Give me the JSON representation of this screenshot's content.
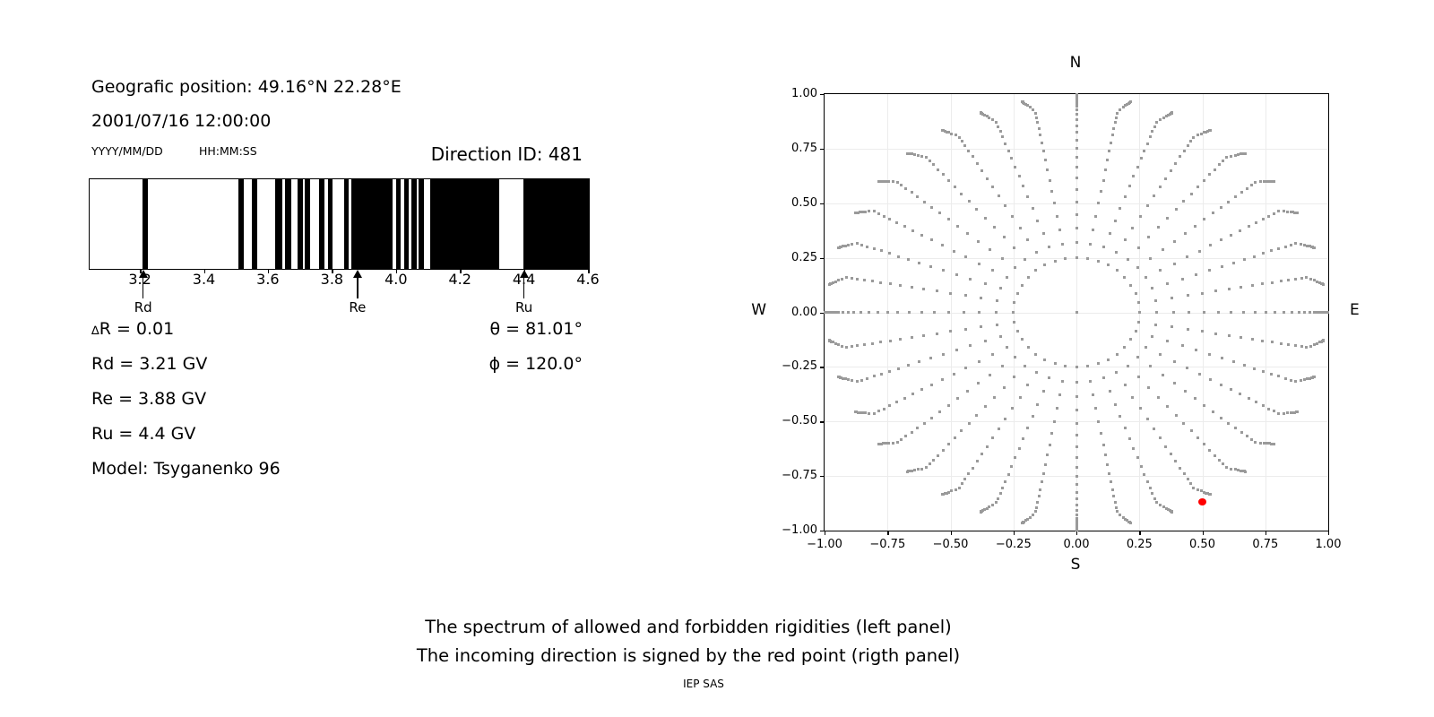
{
  "header": {
    "position": "Geografic position: 49.16°N 22.28°E",
    "date": "2001/07/16",
    "time": "12:00:00",
    "date_hint": "YYYY/MM/DD",
    "time_hint": "HH:MM:SS",
    "direction_id": "Direction ID: 481"
  },
  "params": {
    "delta_sym": "∆",
    "delta_text": "R = 0.01",
    "rd": "Rd = 3.21 GV",
    "re": "Re = 3.88 GV",
    "ru": "Ru = 4.4 GV",
    "model": "Model: Tsyganenko 96",
    "theta": "θ = 81.01°",
    "phi": "ϕ = 120.0°"
  },
  "compass": {
    "n": "N",
    "s": "S",
    "e": "E",
    "w": "W"
  },
  "footer": {
    "line1": "The spectrum of allowed and forbidden rigidities (left panel)",
    "line2": "The incoming direction is signed by the red point (rigth panel)",
    "credit": "IEP SAS"
  },
  "colors": {
    "bar": "#000000",
    "dot_gray": "#9a9a9a",
    "red_point": "#ff0000",
    "grid": "#ececec"
  },
  "chart_data": [
    {
      "type": "bar",
      "name": "rigidity-spectrum",
      "description": "Allowed (white) and forbidden (black) rigidity intervals in GV",
      "xlim": [
        3.04,
        4.6
      ],
      "tick_values": [
        3.2,
        3.4,
        3.6,
        3.8,
        4.0,
        4.2,
        4.4,
        4.6
      ],
      "tick_labels": [
        "3.2",
        "3.4",
        "3.6",
        "3.8",
        "4.0",
        "4.2",
        "4.4",
        "4.6"
      ],
      "forbidden_intervals": [
        [
          3.205,
          3.221
        ],
        [
          3.505,
          3.522
        ],
        [
          3.546,
          3.564
        ],
        [
          3.619,
          3.641
        ],
        [
          3.65,
          3.671
        ],
        [
          3.689,
          3.706
        ],
        [
          3.712,
          3.73
        ],
        [
          3.757,
          3.774
        ],
        [
          3.785,
          3.798
        ],
        [
          3.836,
          3.849
        ],
        [
          3.857,
          3.988
        ],
        [
          3.997,
          4.012
        ],
        [
          4.022,
          4.037
        ],
        [
          4.046,
          4.061
        ],
        [
          4.068,
          4.085
        ],
        [
          4.103,
          4.32
        ],
        [
          4.396,
          4.6
        ]
      ],
      "arrows": [
        {
          "label": "Rd",
          "value": 3.21
        },
        {
          "label": "Re",
          "value": 3.88
        },
        {
          "label": "Ru",
          "value": 4.4
        }
      ]
    },
    {
      "type": "scatter",
      "name": "incoming-directions",
      "description": "Grid of incoming directions; red point marks the selected direction ID 481",
      "xlim": [
        -1,
        1
      ],
      "ylim": [
        -1,
        1
      ],
      "tick_values": [
        -1,
        -0.75,
        -0.5,
        -0.25,
        0,
        0.25,
        0.5,
        0.75,
        1
      ],
      "tick_labels": [
        "−1.00",
        "−0.75",
        "−0.50",
        "−0.25",
        "0.00",
        "0.25",
        "0.50",
        "0.75",
        "1.00"
      ],
      "grid_values": [
        -0.75,
        -0.5,
        -0.25,
        0,
        0.25,
        0.5,
        0.75
      ],
      "spokes": {
        "angle_start_deg": 0,
        "angle_step_deg": 10,
        "count": 36,
        "radii": [
          0.25,
          0.319,
          0.385,
          0.448,
          0.507,
          0.563,
          0.615,
          0.664,
          0.709,
          0.751,
          0.789,
          0.824,
          0.855,
          0.883,
          0.907,
          0.927,
          0.944,
          0.957,
          0.967,
          0.975,
          0.981,
          0.985,
          0.988,
          0.99
        ],
        "cardinal_extra_radii": [
          0.994,
          0.998
        ],
        "tip_bend_deg": 3,
        "bend_start_r": 0.93
      },
      "ring_radius": 0.25,
      "center_dot": true,
      "red_point": {
        "x": 0.5,
        "y": -0.87
      }
    }
  ]
}
